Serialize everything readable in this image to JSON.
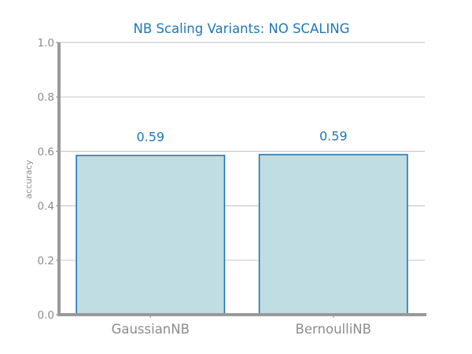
{
  "chart_data": {
    "type": "bar",
    "title": "NB Scaling Variants: NO SCALING",
    "xlabel": "",
    "ylabel": "accuracy",
    "categories": [
      "GaussianNB",
      "BernoulliNB"
    ],
    "values": [
      0.585,
      0.588
    ],
    "data_labels": [
      "0.59",
      "0.59"
    ],
    "ylim": [
      0.0,
      1.0
    ],
    "yticks": [
      0.0,
      0.2,
      0.4,
      0.6,
      0.8,
      1.0
    ],
    "ytick_labels": [
      "0.0",
      "0.2",
      "0.4",
      "0.6",
      "0.8",
      "1.0"
    ],
    "grid": "horizontal",
    "legend": "none",
    "colors": {
      "bar_fill": "#bfdde2",
      "bar_edge": "#1f77b4",
      "title": "#1f77b4",
      "data_label": "#1f77b4",
      "grid": "#cccccc",
      "axis": "#999999",
      "tick_text": "#8c8c8c"
    }
  }
}
